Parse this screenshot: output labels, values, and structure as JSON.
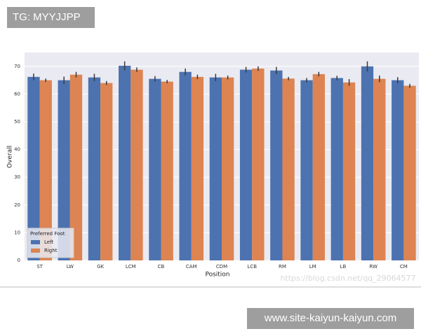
{
  "overlay": {
    "tag": "TG: MYYJJPP",
    "footer": "www.site-kaiyun-kaiyun.com",
    "watermark": "https://blog.csdn.net/qq_29064577"
  },
  "chart_data": {
    "type": "bar",
    "xlabel": "Position",
    "ylabel": "Overall",
    "categories": [
      "ST",
      "LW",
      "GK",
      "LCM",
      "CB",
      "CAM",
      "CDM",
      "LCB",
      "RM",
      "LM",
      "LB",
      "RW",
      "CM"
    ],
    "series": [
      {
        "name": "Left",
        "color": "#4c72b0",
        "values": [
          66.2,
          65.0,
          66.0,
          70.2,
          65.5,
          68.0,
          66.0,
          68.8,
          68.5,
          65.0,
          65.8,
          70.0,
          65.0
        ],
        "errors": [
          1.2,
          1.3,
          1.3,
          1.6,
          1.0,
          1.2,
          1.3,
          1.0,
          1.3,
          0.8,
          0.8,
          1.8,
          1.1
        ]
      },
      {
        "name": "Right",
        "color": "#dd8452",
        "values": [
          65.0,
          67.0,
          64.0,
          68.8,
          64.5,
          66.2,
          66.0,
          69.2,
          65.6,
          67.2,
          64.2,
          65.5,
          63.0
        ],
        "errors": [
          0.6,
          1.0,
          0.7,
          0.8,
          0.6,
          0.8,
          0.7,
          0.8,
          0.6,
          0.8,
          1.2,
          1.2,
          0.7
        ]
      }
    ],
    "ylim": [
      0,
      75
    ],
    "yticks": [
      0,
      10,
      20,
      30,
      40,
      50,
      60,
      70
    ],
    "grid": true,
    "legend_title": "Preferred Foot",
    "legend_position": "lower left"
  }
}
